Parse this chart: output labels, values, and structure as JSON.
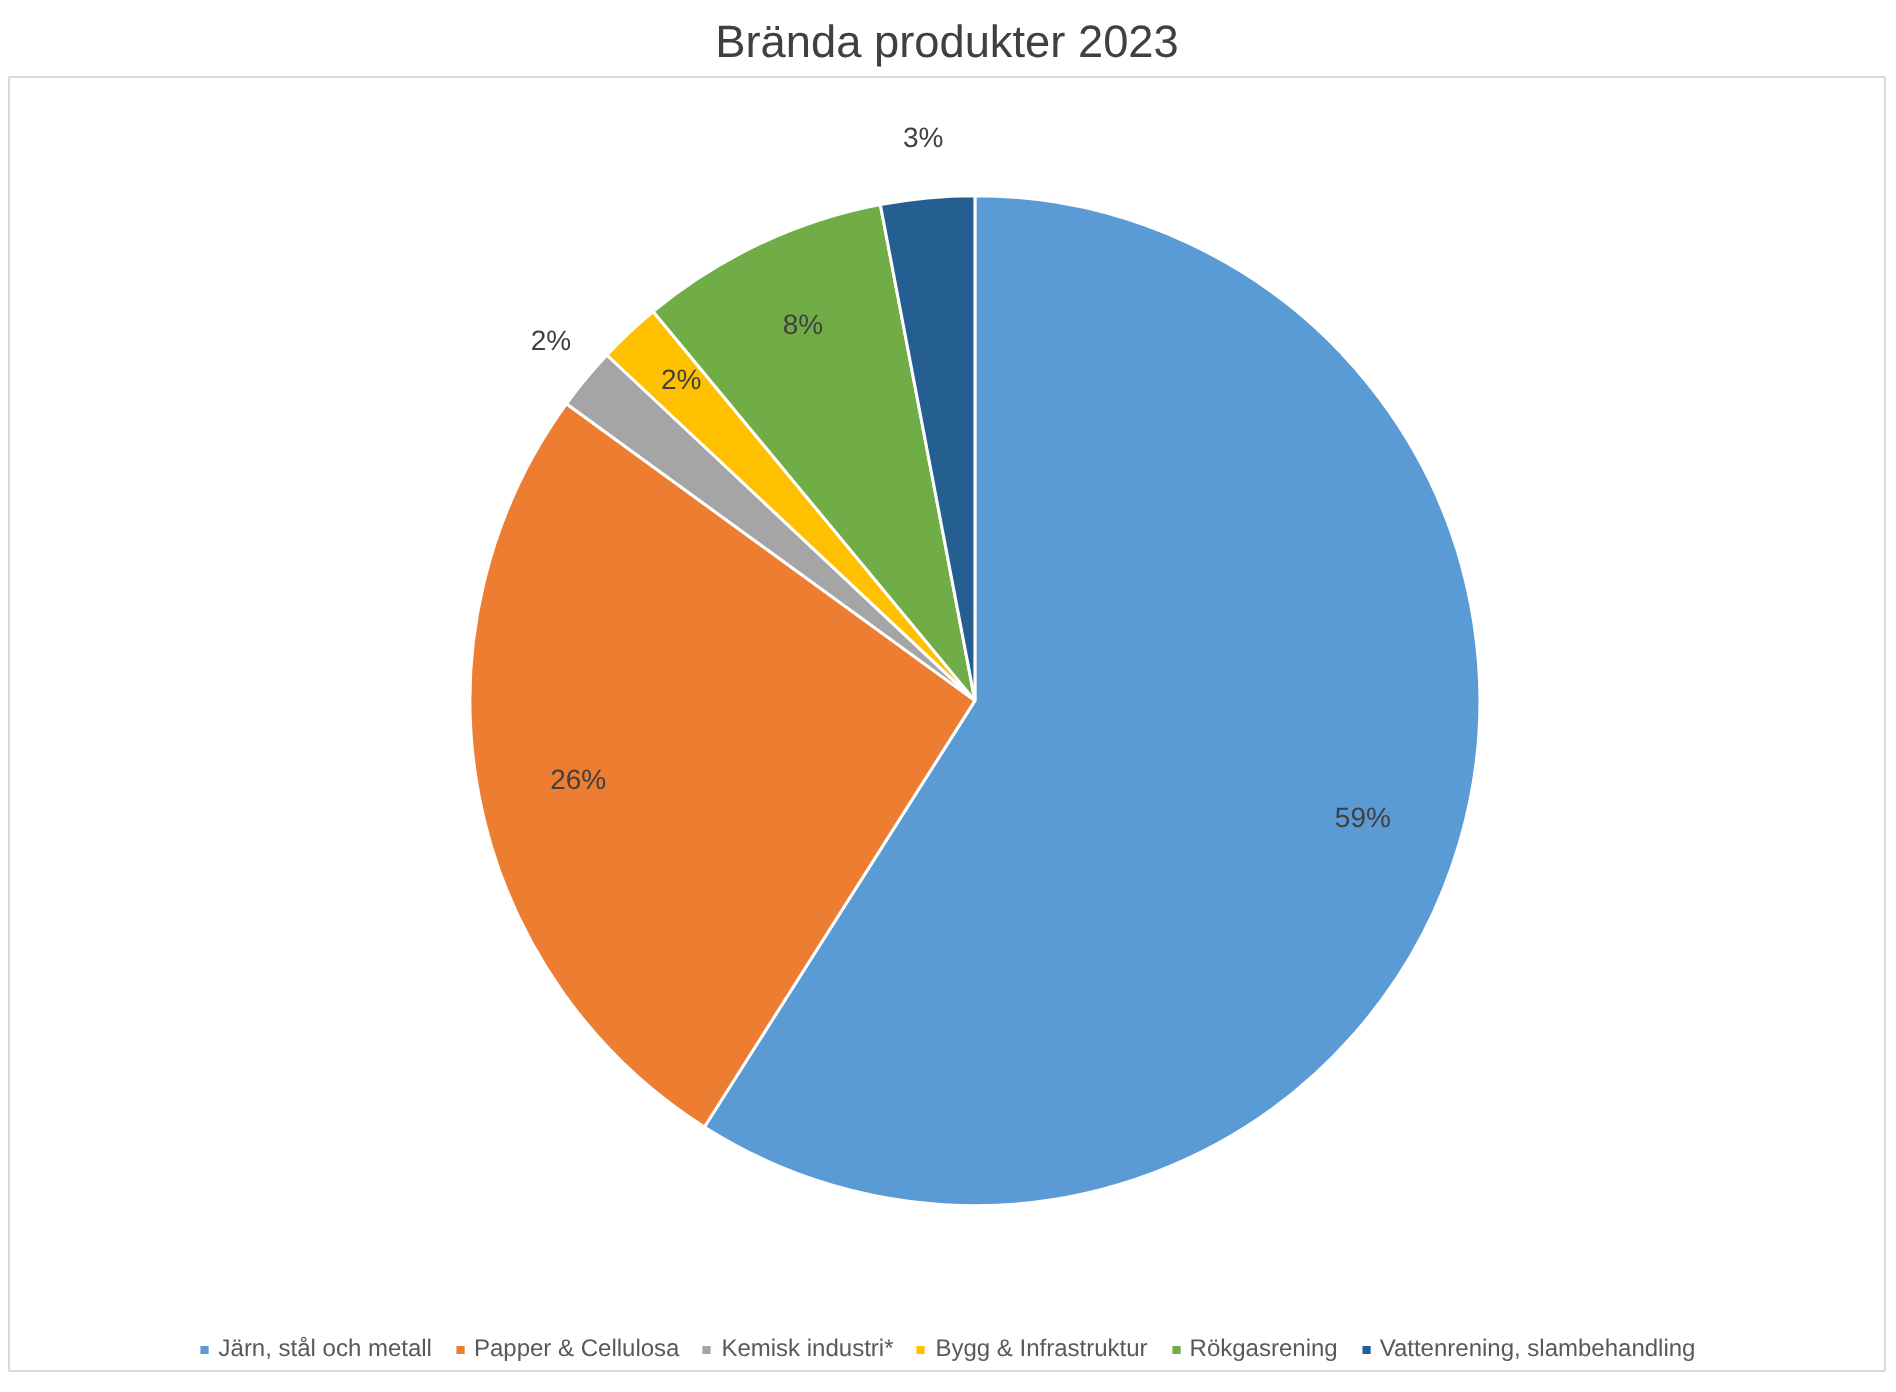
{
  "chart_data": {
    "type": "pie",
    "title": "Brända produkter 2023",
    "categories": [
      "Järn, stål och metall",
      "Papper & Cellulosa",
      "Kemisk industri*",
      "Bygg & Infrastruktur",
      "Rökgasrening",
      "Vattenrening, slambehandling"
    ],
    "values": [
      59,
      26,
      2,
      2,
      8,
      3
    ],
    "colors": [
      "#5b9bd5",
      "#ed7d31",
      "#a5a5a5",
      "#ffc000",
      "#70ad47",
      "#255e91"
    ],
    "value_labels": [
      "59%",
      "26%",
      "2%",
      "2%",
      "8%",
      "3%"
    ],
    "legend": "bottom"
  }
}
